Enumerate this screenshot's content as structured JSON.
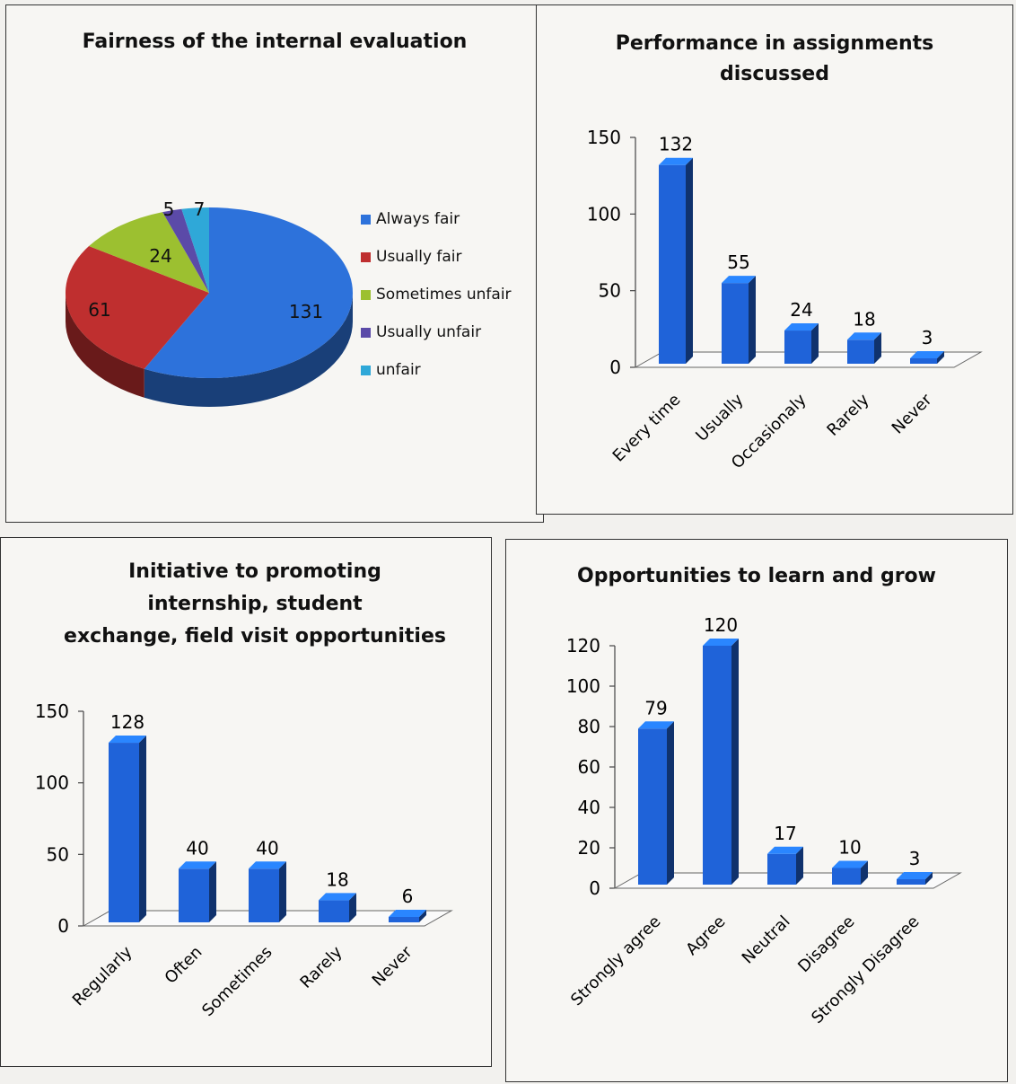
{
  "chart_data": [
    {
      "type": "pie",
      "title": "Fairness of the internal evaluation",
      "categories": [
        "Always fair",
        "Usually fair",
        "Sometimes unfair",
        "Usually unfair",
        "unfair"
      ],
      "values": [
        131,
        61,
        24,
        5,
        7
      ],
      "colors": [
        "#2d72db",
        "#bf2f2f",
        "#9cc030",
        "#5b4aa8",
        "#2fa8d8"
      ],
      "legend": "right"
    },
    {
      "type": "bar",
      "title": "Performance in assignments discussed",
      "categories": [
        "Every time",
        "Usually",
        "Occasionaly",
        "Rarely",
        "Never"
      ],
      "values": [
        132,
        55,
        24,
        18,
        3
      ],
      "yticks": [
        0,
        50,
        100,
        150
      ],
      "ylim": [
        0,
        150
      ],
      "color": "#1f63d9"
    },
    {
      "type": "bar",
      "title": "Initiative to promoting internship, student exchange, field visit opportunities",
      "categories": [
        "Regularly",
        "Often",
        "Sometimes",
        "Rarely",
        "Never"
      ],
      "values": [
        128,
        40,
        40,
        18,
        6
      ],
      "yticks": [
        0,
        50,
        100,
        150
      ],
      "ylim": [
        0,
        150
      ],
      "color": "#1f63d9"
    },
    {
      "type": "bar",
      "title": "Opportunities to learn and grow",
      "categories": [
        "Strongly agree",
        "Agree",
        "Neutral",
        "Disagree",
        "Strongly Disagree"
      ],
      "values": [
        79,
        120,
        17,
        10,
        3
      ],
      "yticks": [
        0,
        20,
        40,
        60,
        80,
        100,
        120
      ],
      "ylim": [
        0,
        120
      ],
      "color": "#1f63d9"
    }
  ],
  "titles": [
    "Fairness of the internal evaluation",
    "Performance in assignments\ndiscussed",
    "Initiative to promoting\ninternship, student\nexchange, field visit opportunities",
    "Opportunities to learn and grow"
  ]
}
